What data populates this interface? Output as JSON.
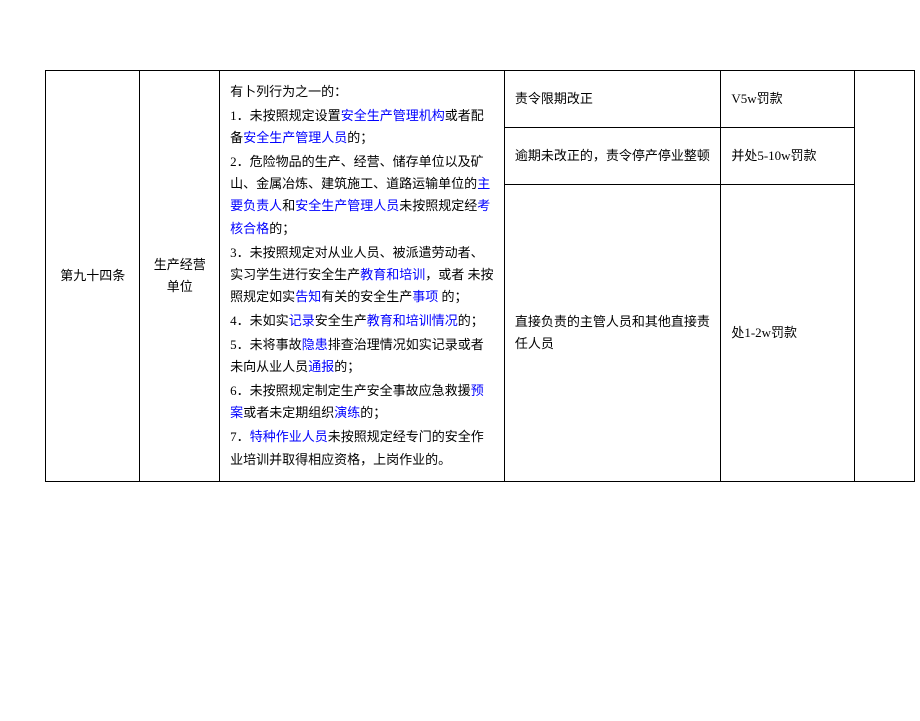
{
  "article": "第九十四条",
  "subject": "生产经营单位",
  "intro": "有卜列行为之一的：",
  "items": [
    {
      "n": "1．",
      "pre": "未按照规定设置",
      "b1": "安全生产管理机构",
      "mid": "或者配备",
      "b2": "安全生产管理人员",
      "post": "的；"
    },
    {
      "n": "2．",
      "pre": "危险物品的生产、经营、储存单位以及矿山、金属冶炼、建筑施工、道路运输单位的",
      "b1": "主要负责人",
      "mid": "和",
      "b2": "安全生产管理人员",
      "post": "未按照规定经",
      "b3": "考核合格",
      "end": "的；"
    },
    {
      "n": "3．",
      "pre": "未按照规定对从业人员、被派遣劳动者、 实习学生进行安全生产",
      "b1": "教育和培训",
      "mid": "，或者  未按照规定如实",
      "b2": "告知",
      "post": "有关的安全生产",
      "b3": "事项",
      "end": " 的；"
    },
    {
      "n": "4．",
      "pre": "未如实",
      "b1": "记录",
      "mid": "安全生产",
      "b2": "教育和培训情况",
      "post": "的；"
    },
    {
      "n": "5．",
      "pre": "未将事故",
      "b1": "隐患",
      "mid": "排查治理情况如实记录或者未向从业人员",
      "b2": "通报",
      "post": "的；"
    },
    {
      "n": "6．",
      "pre": "未按照规定制定生产安全事故应急救援",
      "b1": "预案",
      "mid": "或者未定期组织",
      "b2": "演练",
      "post": "的；"
    },
    {
      "n": "7．",
      "pre": "",
      "b1": "特种作业人员",
      "mid": "未按照规定经专门的安全作业培训并取得相应资格，上岗作业的。"
    }
  ],
  "rows": [
    {
      "c4": "责令限期改正",
      "c5": "V5w罚款"
    },
    {
      "c4": "逾期未改正的，责令停产停业整顿",
      "c5": "并处5-10w罚款"
    },
    {
      "c4": "直接负责的主管人员和其他直接责任人员",
      "c5": "处1-2w罚款"
    }
  ]
}
